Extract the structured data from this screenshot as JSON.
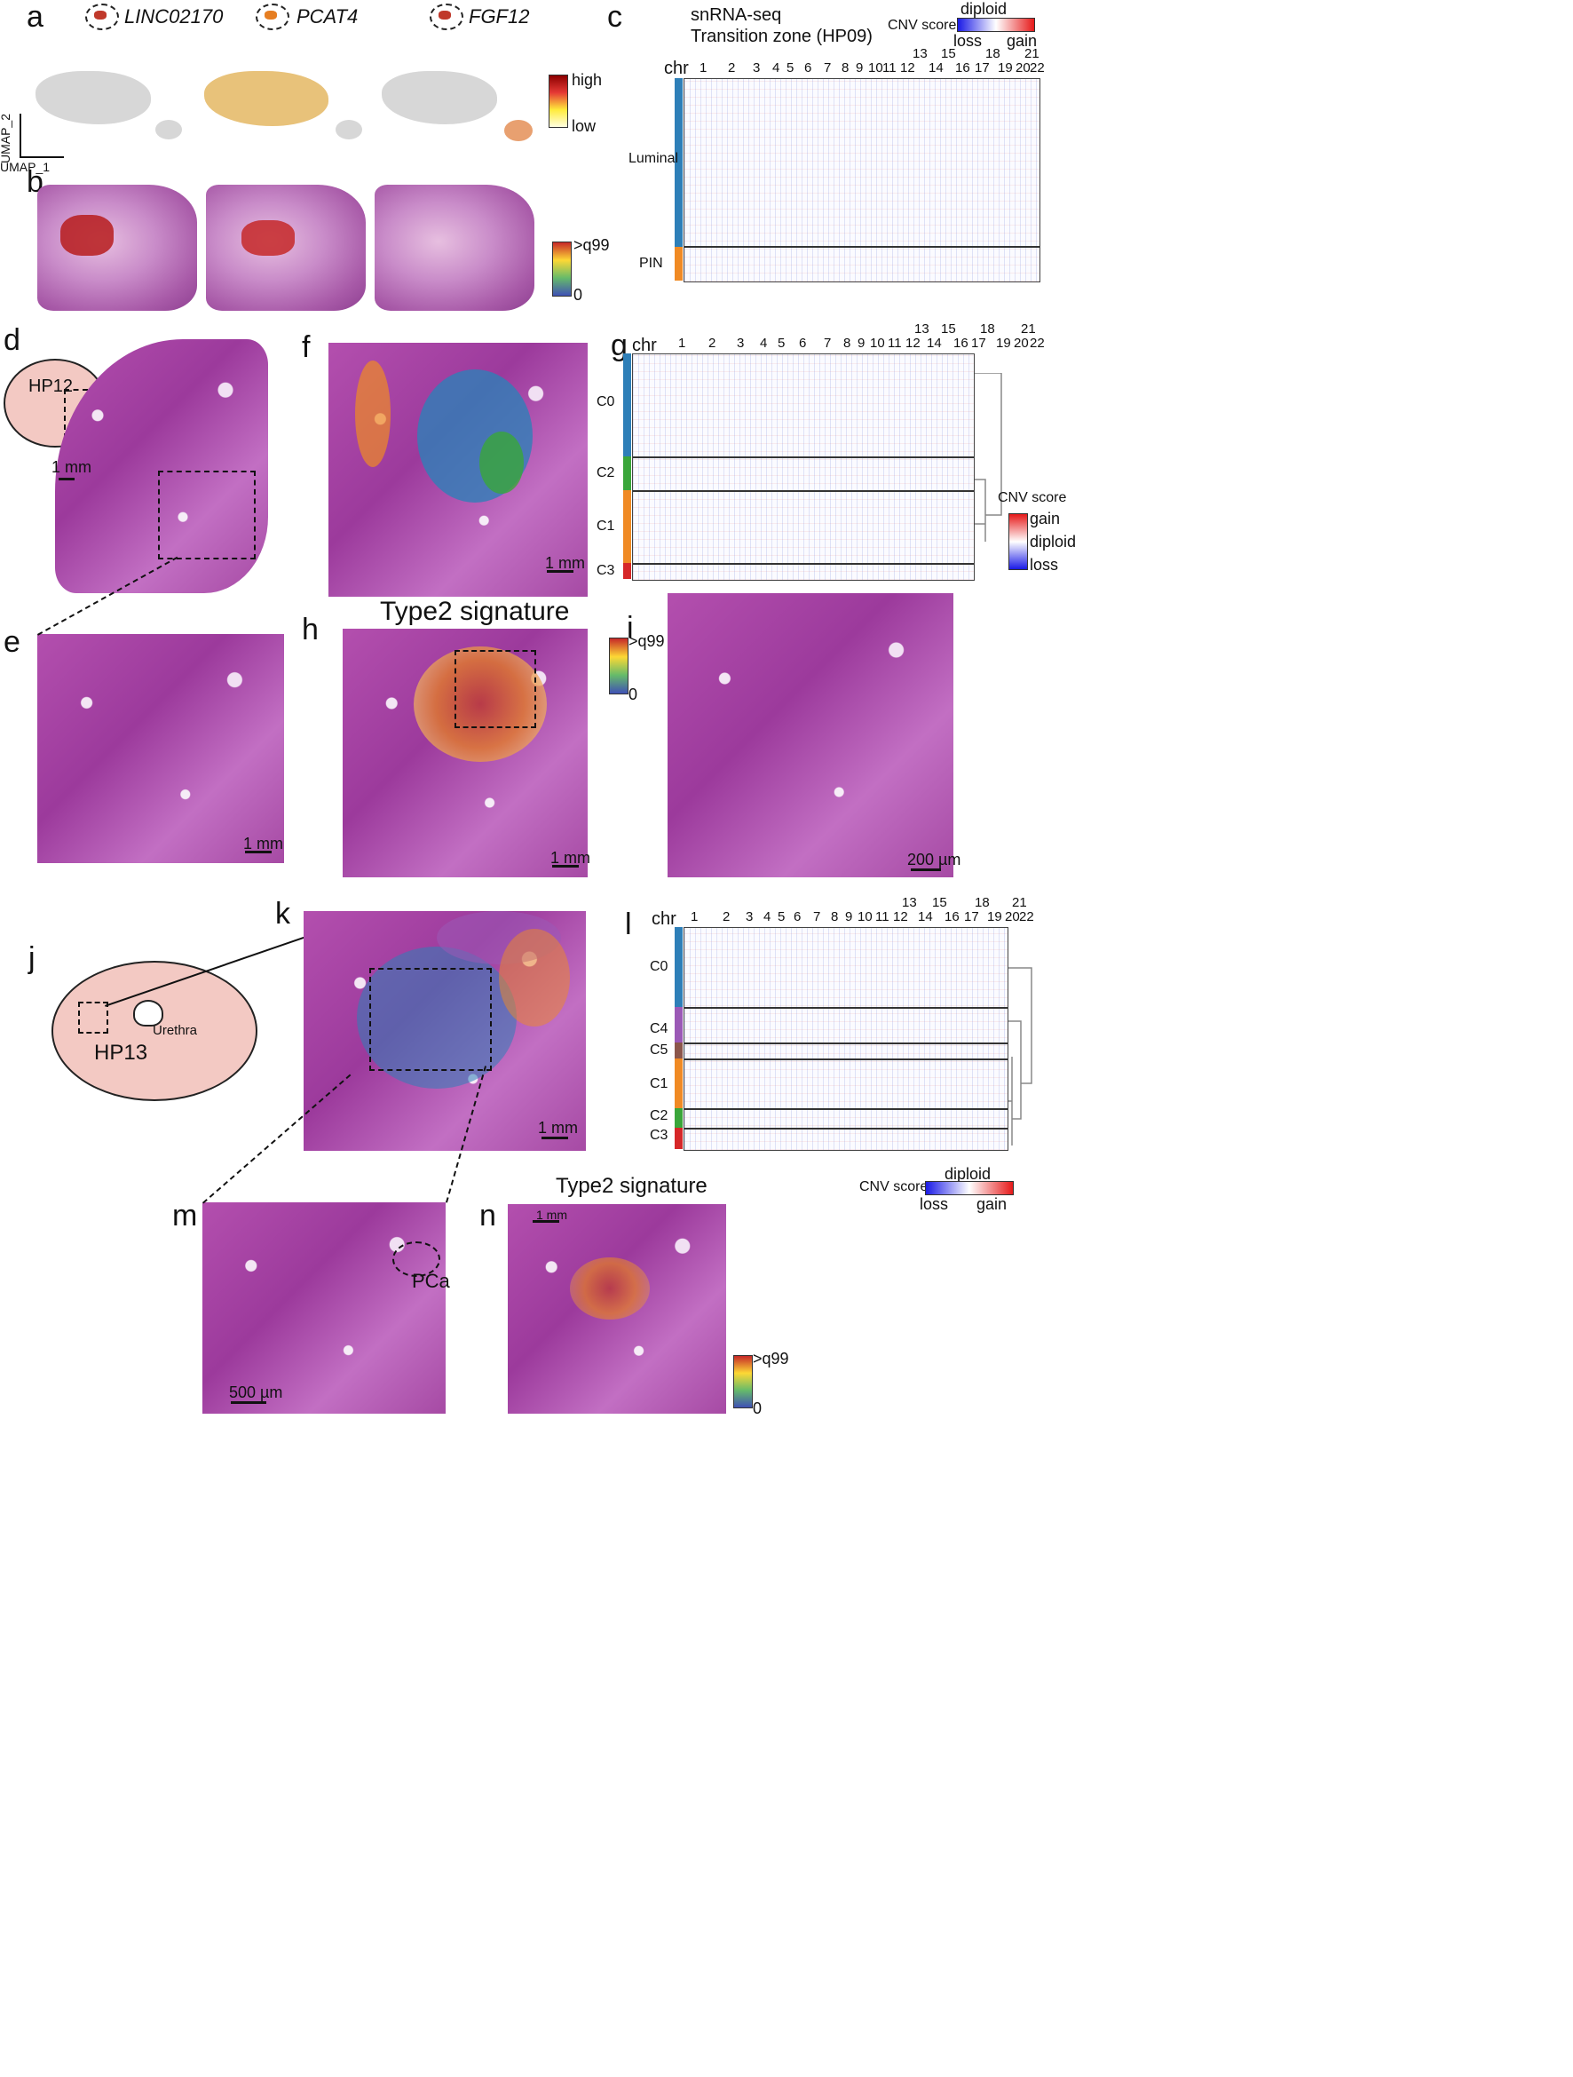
{
  "panels": {
    "a": {
      "label": "a",
      "genes": [
        "LINC02170",
        "PCAT4",
        "FGF12"
      ],
      "axis_x": "UMAP_1",
      "axis_y": "UMAP_2",
      "legend_high": "high",
      "legend_low": "low"
    },
    "b": {
      "label": "b",
      "legend_top": ">q99",
      "legend_bottom": "0"
    },
    "c": {
      "label": "c",
      "title_line1": "snRNA-seq",
      "title_line2": "Transition zone (HP09)",
      "cnv_label": "CNV score",
      "cnv_mid": "diploid",
      "cnv_low": "loss",
      "cnv_high": "gain",
      "chr_label": "chr",
      "chr_upper": [
        "13",
        "15",
        "18",
        "21"
      ],
      "chr_lower": [
        "1",
        "2",
        "3",
        "4",
        "5",
        "6",
        "7",
        "8",
        "9",
        "10",
        "11",
        "12",
        "14",
        "16",
        "17",
        "19",
        "20",
        "22"
      ],
      "groups": [
        "Luminal",
        "PIN"
      ]
    },
    "d": {
      "label": "d",
      "sample": "HP12",
      "scale": "1 mm"
    },
    "e": {
      "label": "e",
      "scale": "1 mm"
    },
    "f": {
      "label": "f",
      "scale": "1 mm"
    },
    "g": {
      "label": "g",
      "chr_label": "chr",
      "chr_upper": [
        "13",
        "15",
        "18",
        "21"
      ],
      "chr_lower": [
        "1",
        "2",
        "3",
        "4",
        "5",
        "6",
        "7",
        "8",
        "9",
        "10",
        "11",
        "12",
        "14",
        "16",
        "17",
        "19",
        "20",
        "22"
      ],
      "groups": [
        "C0",
        "C2",
        "C1",
        "C3"
      ],
      "cnv_label": "CNV score",
      "cnv_high": "gain",
      "cnv_mid": "diploid",
      "cnv_low": "loss"
    },
    "h": {
      "label": "h",
      "title": "Type2 signature",
      "legend_top": ">q99",
      "legend_bottom": "0",
      "scale": "1 mm"
    },
    "i": {
      "label": "i",
      "scale": "200 µm"
    },
    "j": {
      "label": "j",
      "sample": "HP13",
      "urethra": "Urethra"
    },
    "k": {
      "label": "k",
      "scale": "1 mm"
    },
    "l": {
      "label": "l",
      "chr_label": "chr",
      "chr_upper": [
        "13",
        "15",
        "18",
        "21"
      ],
      "chr_lower": [
        "1",
        "2",
        "3",
        "4",
        "5",
        "6",
        "7",
        "8",
        "9",
        "10",
        "11",
        "12",
        "14",
        "16",
        "17",
        "19",
        "20",
        "22"
      ],
      "groups": [
        "C0",
        "C4",
        "C5",
        "C1",
        "C2",
        "C3"
      ],
      "cnv_label": "CNV score",
      "cnv_mid": "diploid",
      "cnv_low": "loss",
      "cnv_high": "gain"
    },
    "m": {
      "label": "m",
      "annotation": "PCa",
      "scale": "500 µm"
    },
    "n": {
      "label": "n",
      "title": "Type2 signature",
      "scale": "1 mm",
      "legend_top": ">q99",
      "legend_bottom": "0"
    }
  },
  "colors": {
    "cluster_c0": "#2e7fb8",
    "cluster_c1": "#f08a24",
    "cluster_c2": "#3aa63a",
    "cluster_c3": "#d62728",
    "cluster_c4": "#9b59b6",
    "cluster_c5": "#8c564b",
    "he_pink": "#b34fae"
  }
}
